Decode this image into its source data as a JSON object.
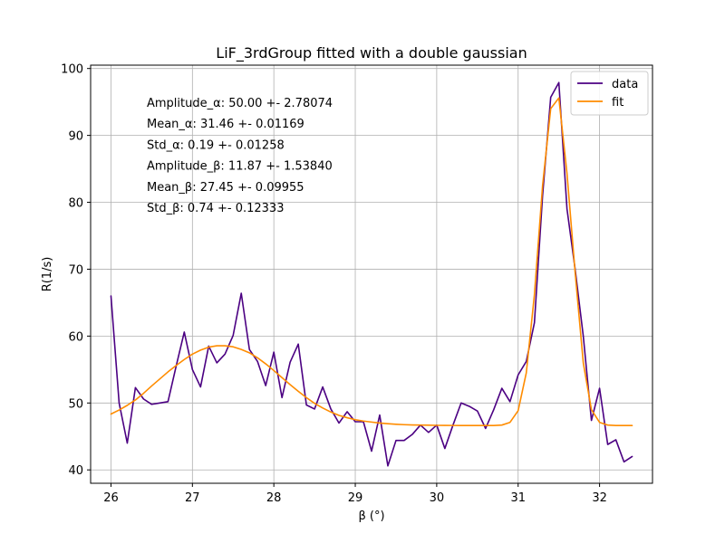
{
  "chart_data": {
    "type": "line",
    "title": "LiF_3rdGroup fitted with a double gaussian",
    "xlabel": "β (°)",
    "ylabel": "R(1/s)",
    "xlim": [
      25.75,
      32.65
    ],
    "ylim": [
      38,
      100.5
    ],
    "xticks": [
      26,
      27,
      28,
      29,
      30,
      31,
      32
    ],
    "yticks": [
      40,
      50,
      60,
      70,
      80,
      90,
      100
    ],
    "grid": true,
    "legend_position": "top-right",
    "annotations": [
      "Amplitude_α: 50.00 +- 2.78074",
      "Mean_α: 31.46 +- 0.01169",
      "Std_α: 0.19 +- 0.01258",
      "Amplitude_β: 11.87  +- 1.53840",
      "Mean_β: 27.45 +- 0.09955",
      "Std_β: 0.74 +- 0.12333"
    ],
    "series": [
      {
        "name": "data",
        "color": "#4b0082",
        "x": [
          26.0,
          26.1,
          26.2,
          26.3,
          26.4,
          26.5,
          26.6,
          26.7,
          26.8,
          26.9,
          27.0,
          27.1,
          27.2,
          27.3,
          27.4,
          27.5,
          27.6,
          27.7,
          27.8,
          27.9,
          28.0,
          28.1,
          28.2,
          28.3,
          28.4,
          28.5,
          28.6,
          28.7,
          28.8,
          28.9,
          29.0,
          29.1,
          29.2,
          29.3,
          29.4,
          29.5,
          29.6,
          29.7,
          29.8,
          29.9,
          30.0,
          30.1,
          30.2,
          30.3,
          30.4,
          30.5,
          30.6,
          30.7,
          30.8,
          30.9,
          31.0,
          31.1,
          31.2,
          31.3,
          31.4,
          31.5,
          31.6,
          31.7,
          31.8,
          31.9,
          32.0,
          32.1,
          32.2,
          32.3,
          32.4
        ],
        "y": [
          66.0,
          50.0,
          44.0,
          52.3,
          50.6,
          49.8,
          50.0,
          50.2,
          55.5,
          60.6,
          55.0,
          52.4,
          58.5,
          56.0,
          57.3,
          60.1,
          66.4,
          58.0,
          56.2,
          52.6,
          57.6,
          50.8,
          56.1,
          58.8,
          49.7,
          49.1,
          52.4,
          49.1,
          47.0,
          48.7,
          47.2,
          47.2,
          42.8,
          48.2,
          40.6,
          44.4,
          44.4,
          45.3,
          46.7,
          45.6,
          46.7,
          43.2,
          46.7,
          50.0,
          49.5,
          48.8,
          46.2,
          49.0,
          52.2,
          50.2,
          54.2,
          56.2,
          62.0,
          81.0,
          95.7,
          97.9,
          79.0,
          70.0,
          60.0,
          47.4,
          52.2,
          43.8,
          44.5,
          41.2,
          42.0
        ]
      },
      {
        "name": "fit",
        "color": "#ff8c00",
        "x": [
          26.0,
          26.1,
          26.2,
          26.3,
          26.4,
          26.5,
          26.6,
          26.7,
          26.8,
          26.9,
          27.0,
          27.1,
          27.2,
          27.3,
          27.4,
          27.5,
          27.6,
          27.7,
          27.8,
          27.9,
          28.0,
          28.1,
          28.2,
          28.3,
          28.4,
          28.5,
          28.6,
          28.7,
          28.8,
          28.9,
          29.0,
          29.1,
          29.2,
          29.3,
          29.4,
          29.5,
          29.6,
          29.7,
          29.8,
          29.9,
          30.0,
          30.1,
          30.2,
          30.3,
          30.4,
          30.5,
          30.6,
          30.7,
          30.8,
          30.9,
          31.0,
          31.1,
          31.2,
          31.3,
          31.4,
          31.5,
          31.6,
          31.7,
          31.8,
          31.9,
          32.0,
          32.1,
          32.2,
          32.3,
          32.4
        ],
        "y": [
          48.35,
          48.95,
          49.65,
          50.45,
          51.45,
          52.55,
          53.6,
          54.65,
          55.6,
          56.5,
          57.3,
          57.9,
          58.35,
          58.55,
          58.55,
          58.4,
          58.0,
          57.5,
          56.75,
          55.85,
          54.85,
          53.8,
          52.75,
          51.75,
          50.8,
          49.95,
          49.25,
          48.65,
          48.15,
          47.8,
          47.5,
          47.3,
          47.15,
          47.0,
          46.9,
          46.82,
          46.76,
          46.72,
          46.7,
          46.68,
          46.66,
          46.65,
          46.64,
          46.63,
          46.63,
          46.63,
          46.63,
          46.63,
          46.7,
          47.1,
          48.85,
          54.5,
          66.2,
          82.5,
          94.0,
          95.6,
          84.3,
          69.5,
          56.0,
          49.0,
          47.1,
          46.7,
          46.63,
          46.63,
          46.63
        ]
      }
    ]
  }
}
